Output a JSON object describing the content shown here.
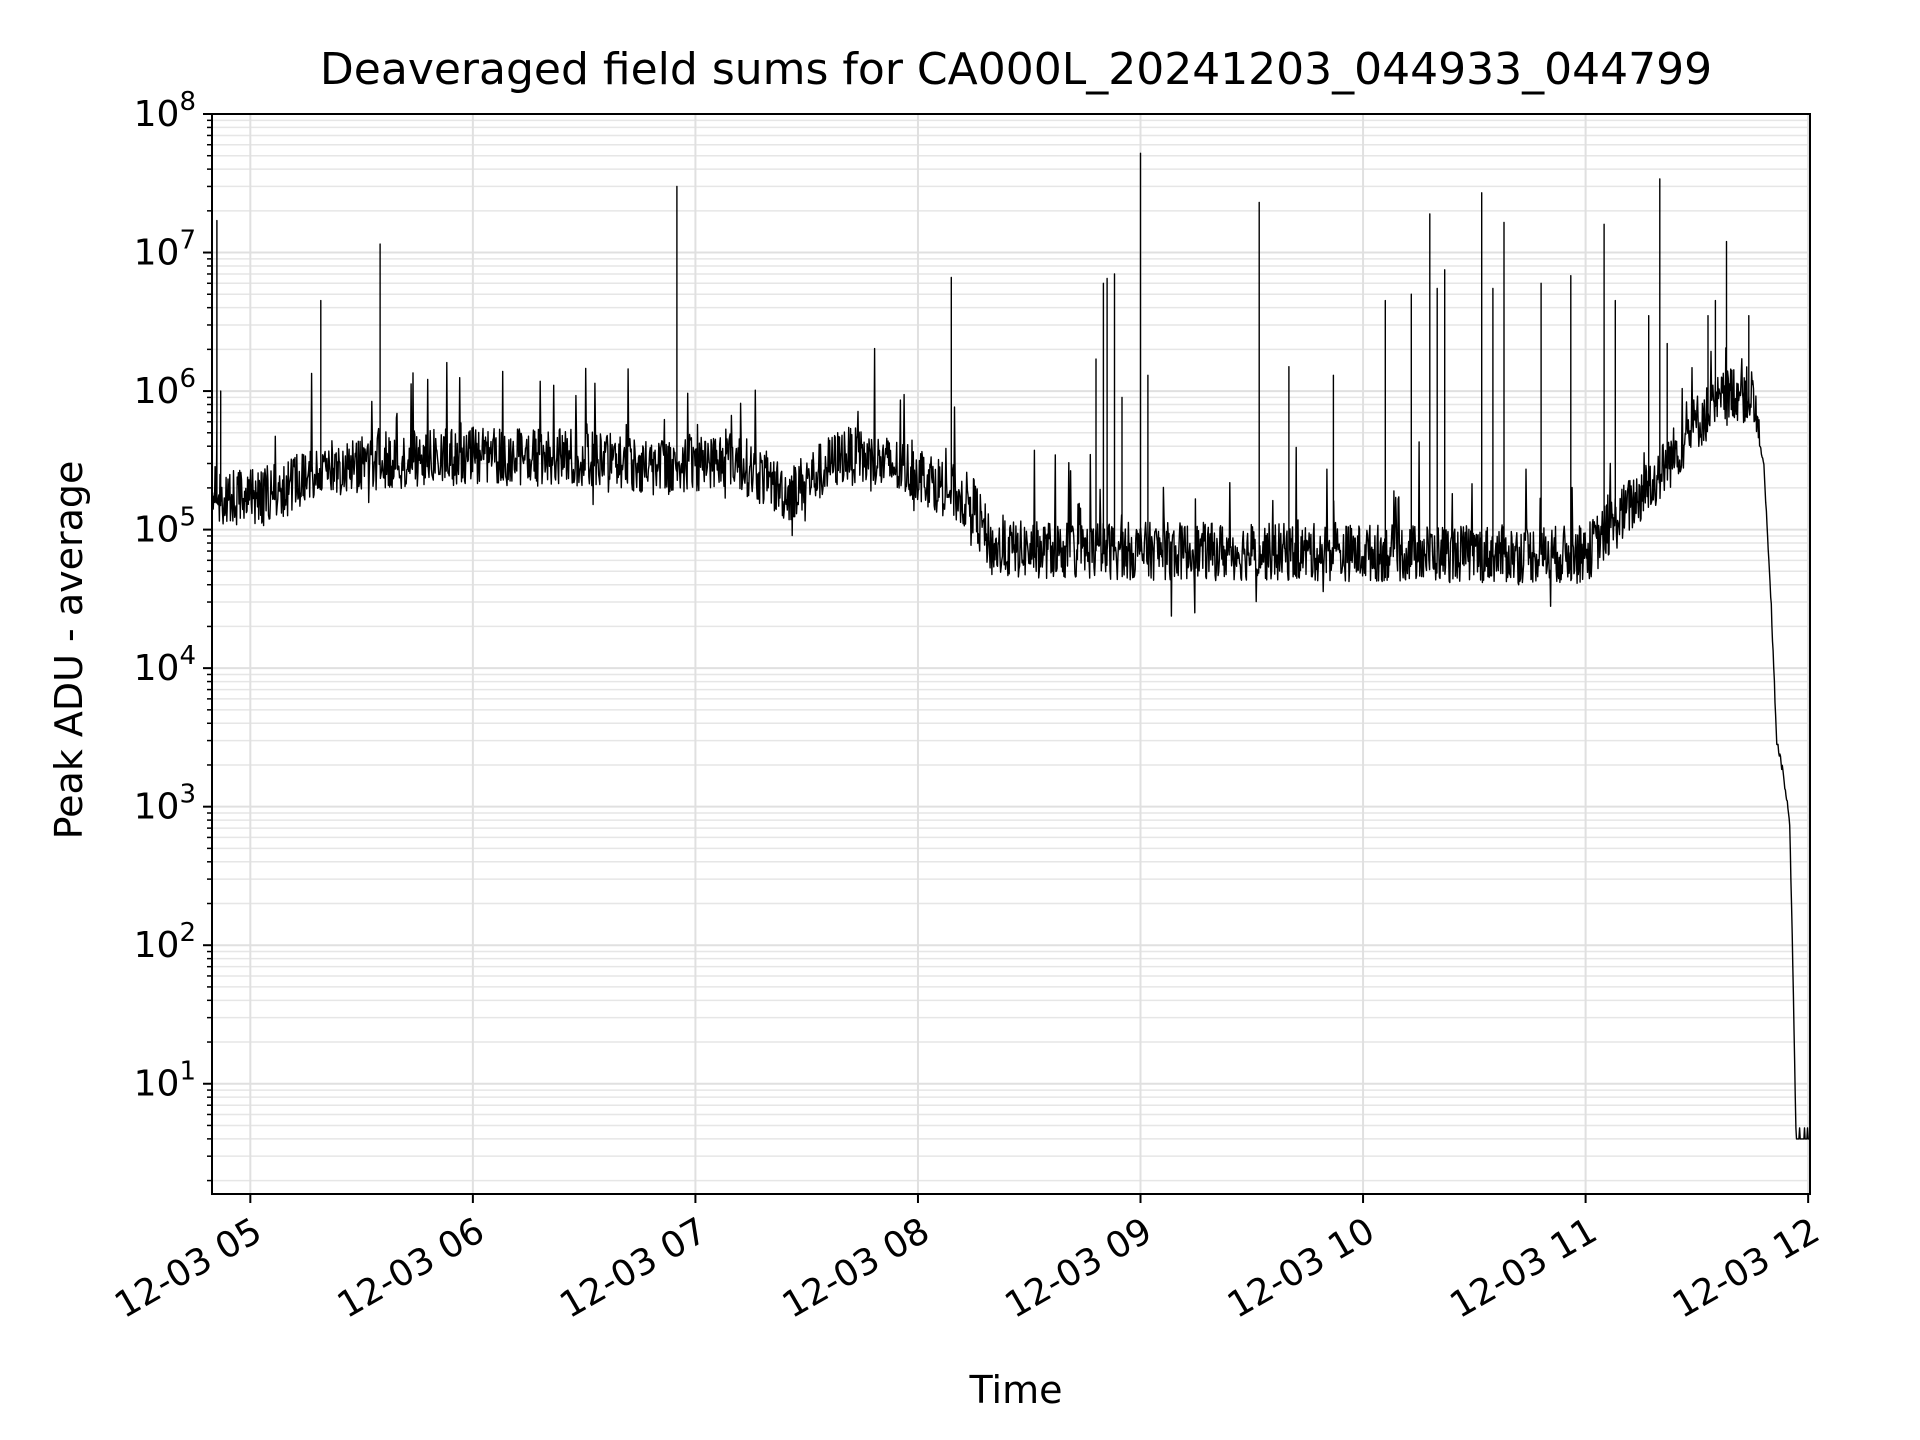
{
  "chart_data": {
    "type": "line",
    "title": "Deaveraged field sums for CA000L_20241203_044933_044799",
    "xlabel": "Time",
    "ylabel": "Peak ADU - average",
    "y_scale": "log",
    "ylim": [
      1.6,
      100000000
    ],
    "xlim": [
      "2024-12-03 04:49:40",
      "2024-12-03 12:00:30"
    ],
    "grid": true,
    "x_ticks": [
      {
        "t": "2024-12-03 05:00",
        "label": "12-03 05"
      },
      {
        "t": "2024-12-03 06:00",
        "label": "12-03 06"
      },
      {
        "t": "2024-12-03 07:00",
        "label": "12-03 07"
      },
      {
        "t": "2024-12-03 08:00",
        "label": "12-03 08"
      },
      {
        "t": "2024-12-03 09:00",
        "label": "12-03 09"
      },
      {
        "t": "2024-12-03 10:00",
        "label": "12-03 10"
      },
      {
        "t": "2024-12-03 11:00",
        "label": "12-03 11"
      },
      {
        "t": "2024-12-03 12:00",
        "label": "12-03 12"
      }
    ],
    "y_ticks": [
      {
        "value": 10,
        "base": "10",
        "exp": "1"
      },
      {
        "value": 100,
        "base": "10",
        "exp": "2"
      },
      {
        "value": 1000,
        "base": "10",
        "exp": "3"
      },
      {
        "value": 10000,
        "base": "10",
        "exp": "4"
      },
      {
        "value": 100000,
        "base": "10",
        "exp": "5"
      },
      {
        "value": 1000000,
        "base": "10",
        "exp": "6"
      },
      {
        "value": 10000000,
        "base": "10",
        "exp": "7"
      },
      {
        "value": 100000000,
        "base": "10",
        "exp": "8"
      }
    ],
    "series": [
      {
        "color": "#000000",
        "baseline": [
          [
            "2024-12-03 04:49:40",
            180000
          ],
          [
            "2024-12-03 05:00",
            170000
          ],
          [
            "2024-12-03 05:10",
            200000
          ],
          [
            "2024-12-03 05:20",
            280000
          ],
          [
            "2024-12-03 05:40",
            320000
          ],
          [
            "2024-12-03 06:00",
            340000
          ],
          [
            "2024-12-03 06:30",
            330000
          ],
          [
            "2024-12-03 06:50",
            280000
          ],
          [
            "2024-12-03 07:10",
            330000
          ],
          [
            "2024-12-03 07:25",
            180000
          ],
          [
            "2024-12-03 07:40",
            350000
          ],
          [
            "2024-12-03 08:00",
            260000
          ],
          [
            "2024-12-03 08:15",
            150000
          ],
          [
            "2024-12-03 08:20",
            72000
          ],
          [
            "2024-12-03 09:00",
            70000
          ],
          [
            "2024-12-03 10:00",
            68000
          ],
          [
            "2024-12-03 11:00",
            66000
          ],
          [
            "2024-12-03 11:10",
            130000
          ],
          [
            "2024-12-03 11:20",
            250000
          ],
          [
            "2024-12-03 11:30",
            600000
          ],
          [
            "2024-12-03 11:40",
            1000000
          ],
          [
            "2024-12-03 11:45",
            900000
          ],
          [
            "2024-12-03 11:48",
            300000
          ],
          [
            "2024-12-03 11:50",
            30000
          ],
          [
            "2024-12-03 11:51:30",
            3000
          ],
          [
            "2024-12-03 11:53",
            1900
          ],
          [
            "2024-12-03 11:55",
            800
          ],
          [
            "2024-12-03 11:56",
            50
          ],
          [
            "2024-12-03 11:56:45",
            4
          ],
          [
            "2024-12-03 12:00:30",
            4
          ]
        ],
        "spikes": [
          [
            "2024-12-03 04:51",
            17000000
          ],
          [
            "2024-12-03 04:52",
            1000000
          ],
          [
            "2024-12-03 05:19",
            4500000
          ],
          [
            "2024-12-03 05:35",
            11500000
          ],
          [
            "2024-12-03 06:55",
            30000000
          ],
          [
            "2024-12-03 08:09",
            6600000
          ],
          [
            "2024-12-03 08:48",
            1700000
          ],
          [
            "2024-12-03 08:50",
            6000000
          ],
          [
            "2024-12-03 08:51",
            6500000
          ],
          [
            "2024-12-03 08:53",
            7000000
          ],
          [
            "2024-12-03 08:55",
            900000
          ],
          [
            "2024-12-03 09:00",
            52000000
          ],
          [
            "2024-12-03 09:02",
            1300000
          ],
          [
            "2024-12-03 09:32",
            23000000
          ],
          [
            "2024-12-03 09:40",
            1500000
          ],
          [
            "2024-12-03 09:52",
            1300000
          ],
          [
            "2024-12-03 10:06",
            4500000
          ],
          [
            "2024-12-03 10:13",
            5000000
          ],
          [
            "2024-12-03 10:18",
            19000000
          ],
          [
            "2024-12-03 10:20",
            5500000
          ],
          [
            "2024-12-03 10:22",
            7500000
          ],
          [
            "2024-12-03 10:32",
            27000000
          ],
          [
            "2024-12-03 10:35",
            5500000
          ],
          [
            "2024-12-03 10:38",
            16500000
          ],
          [
            "2024-12-03 10:48",
            6000000
          ],
          [
            "2024-12-03 10:56",
            6800000
          ],
          [
            "2024-12-03 11:05",
            16000000
          ],
          [
            "2024-12-03 11:08",
            4500000
          ],
          [
            "2024-12-03 11:17",
            3500000
          ],
          [
            "2024-12-03 11:20",
            34000000
          ],
          [
            "2024-12-03 11:22",
            2200000
          ],
          [
            "2024-12-03 11:33",
            3500000
          ],
          [
            "2024-12-03 11:35",
            4500000
          ],
          [
            "2024-12-03 11:38",
            12000000
          ],
          [
            "2024-12-03 11:44",
            3500000
          ]
        ]
      }
    ]
  }
}
